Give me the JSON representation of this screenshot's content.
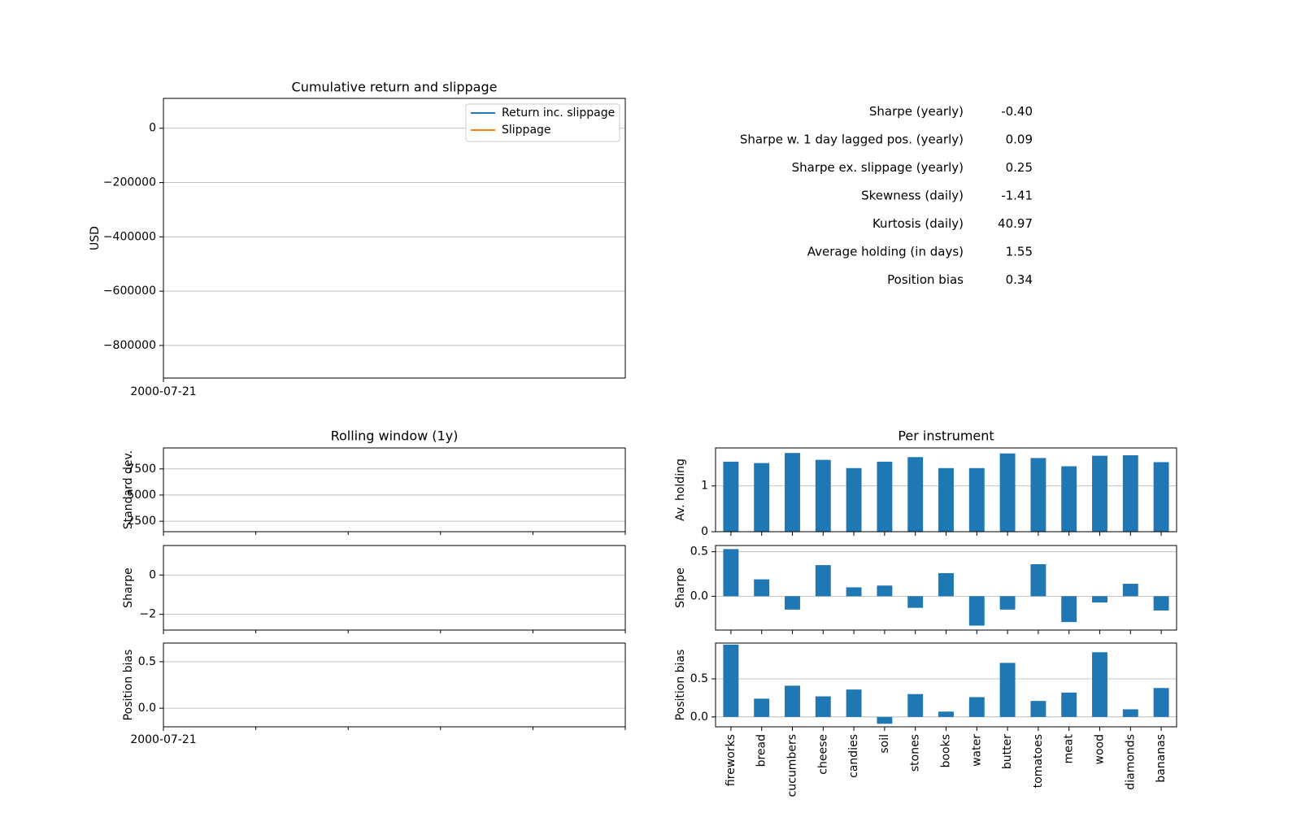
{
  "chart_data": [
    {
      "type": "line",
      "title": "Cumulative return and slippage",
      "xlabel": "",
      "ylabel": "USD",
      "x_tick_labels": [
        "2000-07-21"
      ],
      "y_ticks": [
        0,
        -200000,
        -400000,
        -600000,
        -800000
      ],
      "y_tick_labels": [
        "0",
        "−200000",
        "−400000",
        "−600000",
        "−800000"
      ],
      "ylim": [
        -920000,
        110000
      ],
      "grid": "y",
      "legend_position": "upper right",
      "series": [
        {
          "name": "Return inc. slippage",
          "color": "#1f77b4",
          "values": []
        },
        {
          "name": "Slippage",
          "color": "#ff7f0e",
          "values": []
        }
      ]
    },
    {
      "type": "table",
      "rows": [
        {
          "label": "Sharpe (yearly)",
          "value": "-0.40"
        },
        {
          "label": "Sharpe w. 1 day lagged pos. (yearly)",
          "value": "0.09"
        },
        {
          "label": "Sharpe ex. slippage (yearly)",
          "value": "0.25"
        },
        {
          "label": "Skewness (daily)",
          "value": "-1.41"
        },
        {
          "label": "Kurtosis (daily)",
          "value": "40.97"
        },
        {
          "label": "Average holding (in days)",
          "value": "1.55"
        },
        {
          "label": "Position bias",
          "value": "0.34"
        }
      ]
    },
    {
      "type": "line",
      "title": "Rolling window (1y)",
      "x_tick_labels": [
        "2000-07-21"
      ],
      "panels": [
        {
          "ylabel": "Standard dev.",
          "y_ticks": [
            2500,
            5000,
            7500
          ],
          "y_tick_labels": [
            "2500",
            "5000",
            "7500"
          ],
          "ylim": [
            1500,
            9500
          ],
          "values": []
        },
        {
          "ylabel": "Sharpe",
          "y_ticks": [
            0,
            -2
          ],
          "y_tick_labels": [
            "0",
            "−2"
          ],
          "ylim": [
            -2.8,
            1.5
          ],
          "values": []
        },
        {
          "ylabel": "Position bias",
          "y_ticks": [
            0.5,
            0.0
          ],
          "y_tick_labels": [
            "0.5",
            "0.0"
          ],
          "ylim": [
            -0.2,
            0.7
          ],
          "values": []
        }
      ],
      "grid": "y"
    },
    {
      "type": "bar",
      "title": "Per instrument",
      "color": "#1f77b4",
      "categories": [
        "fireworks",
        "bread",
        "cucumbers",
        "cheese",
        "candies",
        "soil",
        "stones",
        "books",
        "water",
        "butter",
        "tomatoes",
        "meat",
        "wood",
        "diamonds",
        "bananas"
      ],
      "panels": [
        {
          "ylabel": "Av. holding",
          "y_ticks": [
            0,
            1
          ],
          "y_tick_labels": [
            "0",
            "1"
          ],
          "ylim": [
            0,
            1.83
          ],
          "values": [
            1.53,
            1.5,
            1.72,
            1.57,
            1.39,
            1.53,
            1.63,
            1.39,
            1.39,
            1.71,
            1.61,
            1.43,
            1.66,
            1.67,
            1.52
          ]
        },
        {
          "ylabel": "Sharpe",
          "y_ticks": [
            0.5,
            0.0
          ],
          "y_tick_labels": [
            "0.5",
            "0.0"
          ],
          "ylim": [
            -0.38,
            0.57
          ],
          "values": [
            0.53,
            0.19,
            -0.15,
            0.35,
            0.1,
            0.12,
            -0.13,
            0.26,
            -0.33,
            -0.15,
            0.36,
            -0.29,
            -0.07,
            0.14,
            -0.16
          ]
        },
        {
          "ylabel": "Position bias",
          "y_ticks": [
            0.5,
            0.0
          ],
          "y_tick_labels": [
            "0.5",
            "0.0"
          ],
          "ylim": [
            -0.13,
            0.97
          ],
          "values": [
            0.95,
            0.24,
            0.41,
            0.27,
            0.36,
            -0.09,
            0.3,
            0.07,
            0.26,
            0.71,
            0.21,
            0.32,
            0.85,
            0.1,
            0.38
          ]
        }
      ],
      "grid": "y"
    }
  ]
}
